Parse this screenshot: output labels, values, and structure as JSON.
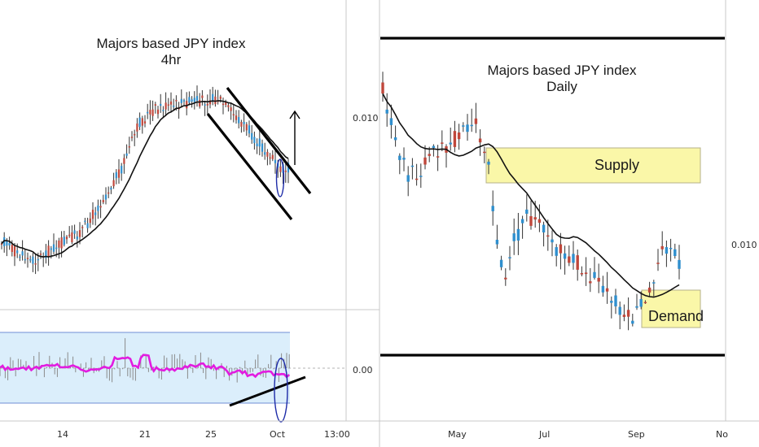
{
  "colors": {
    "up": "#2f8fce",
    "down": "#c0473b",
    "ma": "#111111",
    "oscillator": "#e21ce0",
    "band_fill": "#dbeefb",
    "band_line": "#6f8fd6",
    "zone_fill": "#faf7a8",
    "zone_border": "#b5b08a",
    "divider": "#c9c9c9",
    "trendline": "#000000",
    "ellipse": "#1d2ba8"
  },
  "left_chart": {
    "title_line1": "Majors based JPY index",
    "title_line2": "4hr",
    "price_label": "0.010",
    "osc_label": "0.00",
    "x_ticks": [
      "14",
      "21",
      "25",
      "Oct",
      "13:00"
    ]
  },
  "right_chart": {
    "title_line1": "Majors based JPY index",
    "title_line2": "Daily",
    "price_label": "0.010",
    "x_ticks": [
      "May",
      "Jul",
      "Sep",
      "No"
    ],
    "supply_label": "Supply",
    "demand_label": "Demand"
  },
  "chart_data": [
    {
      "type": "candlestick",
      "title": "Majors based JPY index 4hr",
      "x_tick_labels": [
        "14",
        "21",
        "25",
        "Oct",
        "13:00"
      ],
      "y_tick_labels": [
        "0.010"
      ],
      "trend": "rally from lows into a peak near 25, followed by a descending channel into Oct",
      "moving_average": "smoothed line rising under price, rolling over after the peak",
      "annotations": [
        "descending channel",
        "up arrow",
        "ellipse around the last candle"
      ]
    },
    {
      "type": "oscillator",
      "y_tick_labels": [
        "0.00"
      ],
      "series": [
        {
          "description": "magenta oscillator line inside a shaded band, ticks around zero"
        }
      ],
      "annotations": [
        "rising trendline under the oscillator",
        "ellipse at Oct"
      ]
    },
    {
      "type": "candlestick",
      "title": "Majors based JPY index Daily",
      "x_tick_labels": [
        "May",
        "Jul",
        "Sep",
        "No"
      ],
      "y_tick_labels": [
        "0.010"
      ],
      "trend": "high in spring, drop in May, grind lower into Sep, rebound",
      "zones": [
        "Supply",
        "Demand"
      ],
      "annotations": [
        "horizontal line at top",
        "horizontal line at bottom"
      ]
    }
  ]
}
